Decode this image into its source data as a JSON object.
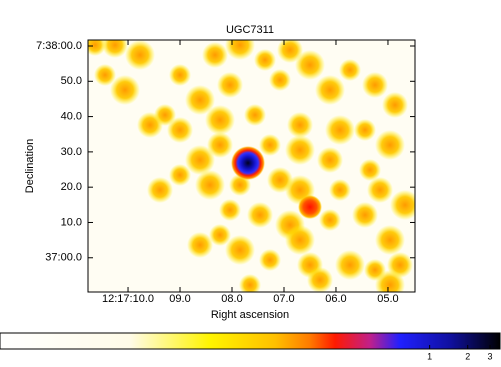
{
  "chart_data": {
    "type": "image",
    "title": "UGC7311",
    "x_label": "Right ascension",
    "y_label": "Declination",
    "xlim": [
      10.77,
      4.48
    ],
    "ylim": [
      -9.7,
      61.7
    ],
    "xticks": [
      {
        "value": 10,
        "label": "12:17:10.0"
      },
      {
        "value": 9,
        "label": "09.0"
      },
      {
        "value": 8,
        "label": "08.0"
      },
      {
        "value": 7,
        "label": "07.0"
      },
      {
        "value": 6,
        "label": "06.0"
      },
      {
        "value": 5,
        "label": "05.0"
      }
    ],
    "yticks": [
      {
        "value": 60,
        "label": "7:38:00.0"
      },
      {
        "value": 50,
        "label": "50.0"
      },
      {
        "value": 40,
        "label": "40.0"
      },
      {
        "value": 30,
        "label": "30.0"
      },
      {
        "value": 20,
        "label": "20.0"
      },
      {
        "value": 10,
        "label": "10.0"
      },
      {
        "value": 0,
        "label": "37:00.0"
      }
    ],
    "colorbar": {
      "scale": "log",
      "lim": [
        0.0004,
        3.6
      ],
      "ticks": [
        1,
        2,
        3
      ]
    }
  }
}
